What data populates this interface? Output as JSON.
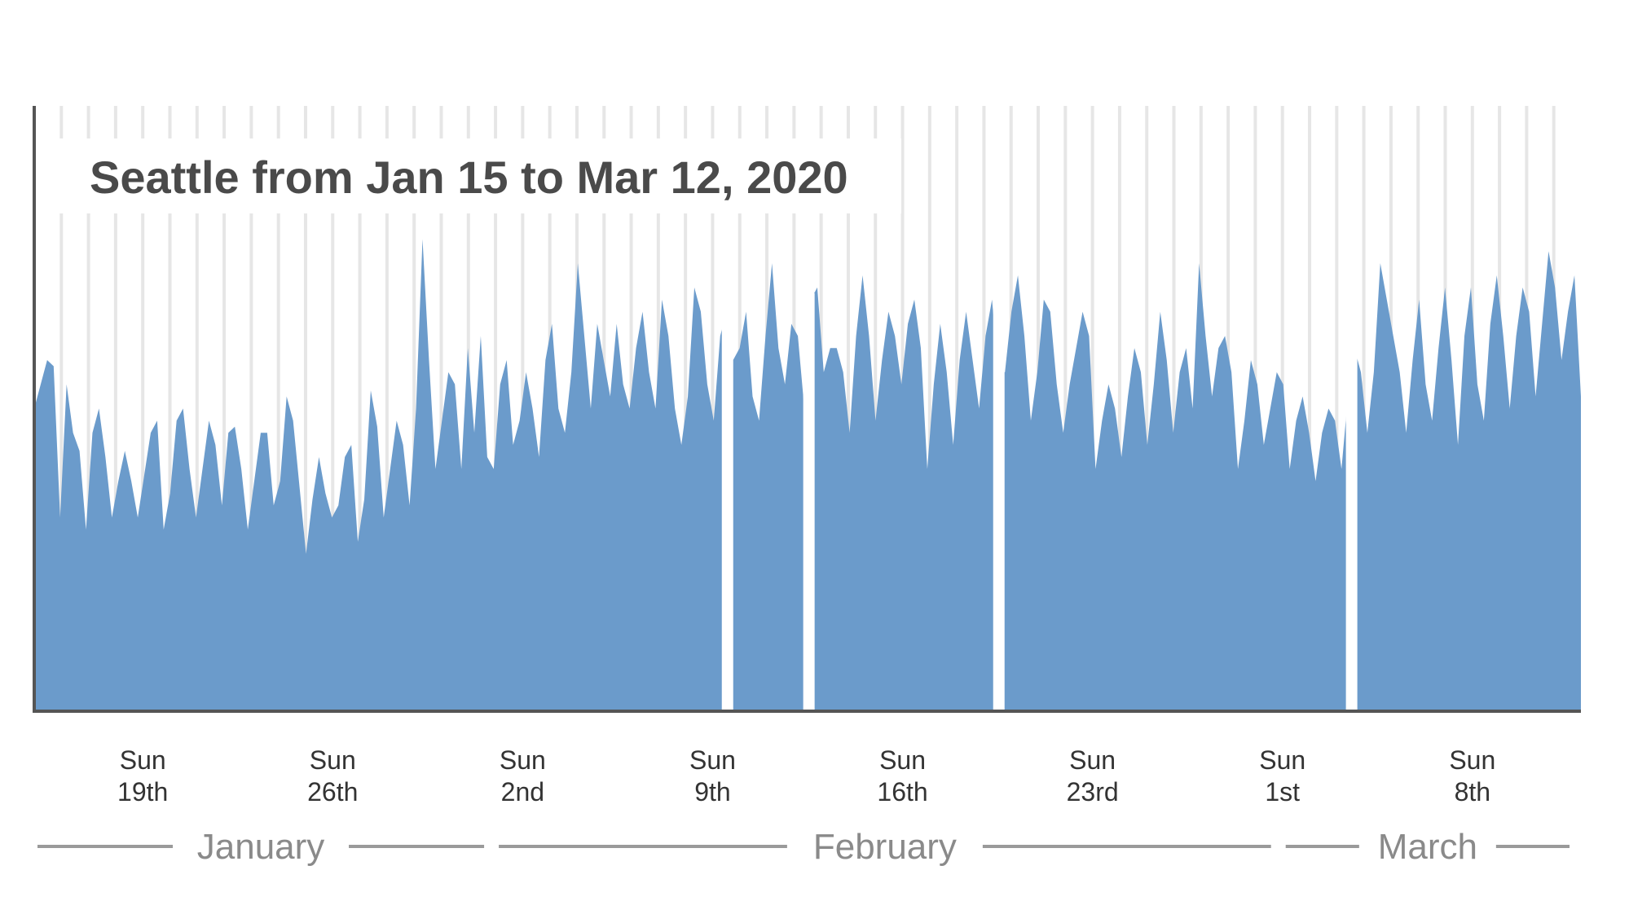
{
  "chart_data": {
    "type": "area",
    "title": "Seattle from Jan 15 to Mar 12, 2020",
    "xlabel": "",
    "ylabel": "",
    "x_range": [
      "2020-01-15",
      "2020-03-12"
    ],
    "y_range": [
      0,
      1
    ],
    "grid": "vertical lines at day boundaries",
    "color": "#6b9bcb",
    "x_ticks": [
      {
        "weekday": "Sun",
        "day": "19th",
        "date": "2020-01-19"
      },
      {
        "weekday": "Sun",
        "day": "26th",
        "date": "2020-01-26"
      },
      {
        "weekday": "Sun",
        "day": "2nd",
        "date": "2020-02-02"
      },
      {
        "weekday": "Sun",
        "day": "9th",
        "date": "2020-02-09"
      },
      {
        "weekday": "Sun",
        "day": "16th",
        "date": "2020-02-16"
      },
      {
        "weekday": "Sun",
        "day": "23rd",
        "date": "2020-02-23"
      },
      {
        "weekday": "Sun",
        "day": "1st",
        "date": "2020-03-01"
      },
      {
        "weekday": "Sun",
        "day": "8th",
        "date": "2020-03-08"
      }
    ],
    "months": [
      {
        "label": "January",
        "start": "2020-01-15",
        "end": "2020-02-01"
      },
      {
        "label": "February",
        "start": "2020-02-01",
        "end": "2020-03-01"
      },
      {
        "label": "March",
        "start": "2020-03-01",
        "end": "2020-03-12"
      }
    ],
    "series": [
      {
        "values": [
          0.5,
          0.54,
          0.58,
          0.57,
          0.32,
          0.54,
          0.46,
          0.43,
          0.3,
          0.46,
          0.5,
          0.42,
          0.32,
          0.38,
          0.43,
          0.38,
          0.32,
          0.39,
          0.46,
          0.48,
          0.3,
          0.36,
          0.48,
          0.5,
          0.4,
          0.32,
          0.4,
          0.48,
          0.44,
          0.34,
          0.46,
          0.47,
          0.4,
          0.3,
          0.38,
          0.46,
          0.46,
          0.34,
          0.38,
          0.52,
          0.48,
          0.37,
          0.26,
          0.35,
          0.42,
          0.36,
          0.32,
          0.34,
          0.42,
          0.44,
          0.28,
          0.35,
          0.53,
          0.47,
          0.32,
          0.4,
          0.48,
          0.44,
          0.34,
          0.5,
          0.78,
          0.58,
          0.4,
          0.48,
          0.56,
          0.54,
          0.4,
          0.6,
          0.46,
          0.62,
          0.42,
          0.4,
          0.54,
          0.58,
          0.44,
          0.48,
          0.56,
          0.5,
          0.42,
          0.58,
          0.64,
          0.5,
          0.46,
          0.56,
          0.74,
          0.62,
          0.5,
          0.64,
          0.58,
          0.52,
          0.64,
          0.54,
          0.5,
          0.6,
          0.66,
          0.56,
          0.5,
          0.68,
          0.62,
          0.5,
          0.44,
          0.52,
          0.7,
          0.66,
          0.54,
          0.48,
          0.62,
          0.66,
          0.58,
          0.6,
          0.66,
          0.52,
          0.48,
          0.62,
          0.74,
          0.6,
          0.54,
          0.64,
          0.62,
          0.5,
          0.68,
          0.7,
          0.56,
          0.6,
          0.6,
          0.56,
          0.46,
          0.62,
          0.72,
          0.62,
          0.48,
          0.58,
          0.66,
          0.62,
          0.54,
          0.64,
          0.68,
          0.6,
          0.4,
          0.54,
          0.64,
          0.56,
          0.44,
          0.58,
          0.66,
          0.58,
          0.5,
          0.62,
          0.68,
          0.56,
          0.56,
          0.66,
          0.72,
          0.62,
          0.48,
          0.56,
          0.68,
          0.66,
          0.54,
          0.46,
          0.54,
          0.6,
          0.66,
          0.62,
          0.4,
          0.48,
          0.54,
          0.5,
          0.42,
          0.52,
          0.6,
          0.56,
          0.44,
          0.54,
          0.66,
          0.58,
          0.46,
          0.56,
          0.6,
          0.5,
          0.74,
          0.62,
          0.52,
          0.6,
          0.62,
          0.56,
          0.4,
          0.48,
          0.58,
          0.54,
          0.44,
          0.5,
          0.56,
          0.54,
          0.4,
          0.48,
          0.52,
          0.46,
          0.38,
          0.46,
          0.5,
          0.48,
          0.4,
          0.52,
          0.6,
          0.56,
          0.46,
          0.56,
          0.74,
          0.68,
          0.62,
          0.56,
          0.46,
          0.58,
          0.68,
          0.54,
          0.48,
          0.6,
          0.7,
          0.58,
          0.44,
          0.62,
          0.7,
          0.54,
          0.48,
          0.64,
          0.72,
          0.62,
          0.5,
          0.62,
          0.7,
          0.66,
          0.52,
          0.64,
          0.76,
          0.7,
          0.58,
          0.66,
          0.72,
          0.52
        ]
      }
    ]
  }
}
